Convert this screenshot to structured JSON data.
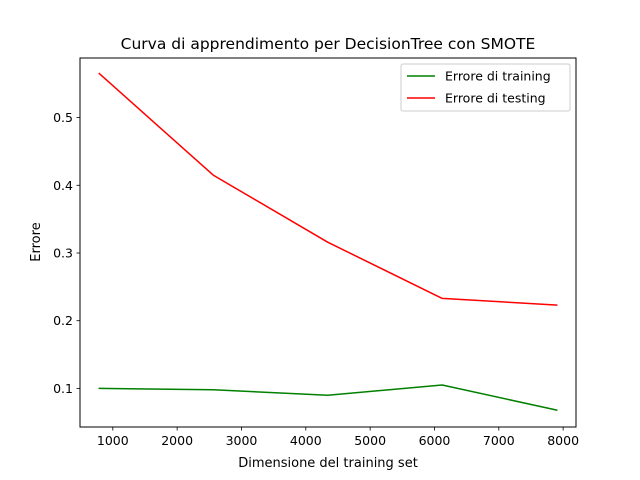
{
  "chart_data": {
    "type": "line",
    "title": "Curva di apprendimento per DecisionTree con SMOTE",
    "xlabel": "Dimensione del training set",
    "ylabel": "Errore",
    "xlim": [
      490,
      8200
    ],
    "ylim": [
      0.043,
      0.588
    ],
    "xticks": [
      1000,
      2000,
      3000,
      4000,
      5000,
      6000,
      7000,
      8000
    ],
    "yticks": [
      0.1,
      0.2,
      0.3,
      0.4,
      0.5
    ],
    "ytick_labels": [
      "0.1",
      "0.2",
      "0.3",
      "0.4",
      "0.5"
    ],
    "grid": false,
    "legend_position": "top-right",
    "x": [
      790,
      2560,
      4340,
      6120,
      7900
    ],
    "series": [
      {
        "name": "Errore di training",
        "color": "#008000",
        "values": [
          0.1,
          0.098,
          0.09,
          0.105,
          0.068
        ]
      },
      {
        "name": "Errore di testing",
        "color": "#ff0000",
        "values": [
          0.565,
          0.415,
          0.316,
          0.233,
          0.223
        ]
      }
    ]
  }
}
